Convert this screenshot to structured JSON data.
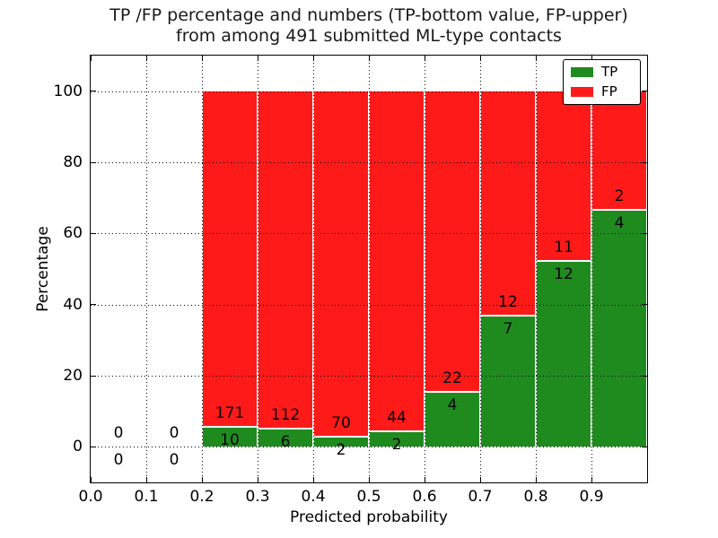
{
  "title": {
    "line1": "TP /FP percentage and numbers (TP-bottom value, FP-upper)",
    "line2": "from among 491 submitted ML-type contacts"
  },
  "axes": {
    "xlabel": "Predicted probability",
    "ylabel": "Percentage",
    "xtick_labels": [
      "0.0",
      "0.1",
      "0.2",
      "0.3",
      "0.4",
      "0.5",
      "0.6",
      "0.7",
      "0.8",
      "0.9"
    ],
    "xtick_values": [
      0.0,
      0.1,
      0.2,
      0.3,
      0.4,
      0.5,
      0.6,
      0.7,
      0.8,
      0.9
    ],
    "ytick_labels": [
      "0",
      "20",
      "40",
      "60",
      "80",
      "100"
    ],
    "ytick_values": [
      0,
      20,
      40,
      60,
      80,
      100
    ]
  },
  "legend": {
    "items": [
      {
        "label": "TP",
        "color_key": "tp"
      },
      {
        "label": "FP",
        "color_key": "fp"
      }
    ],
    "position": "upper right"
  },
  "colors": {
    "tp": "#1f8b1f",
    "fp": "#ff1a1a",
    "grid": "#000000",
    "background": "#ffffff"
  },
  "chart_data": {
    "type": "bar",
    "stacked": true,
    "normalized_to_percent": true,
    "title": "TP /FP percentage and numbers (TP-bottom value, FP-upper) from among 491 submitted ML-type contacts",
    "xlabel": "Predicted probability",
    "ylabel": "Percentage",
    "xlim": [
      0.0,
      1.0
    ],
    "ylim": [
      -10,
      110
    ],
    "grid": true,
    "grid_style": "dotted",
    "legend_position": "upper right",
    "total_contacts": 491,
    "bin_edges": [
      0.0,
      0.1,
      0.2,
      0.3,
      0.4,
      0.5,
      0.6,
      0.7,
      0.8,
      0.9,
      1.0
    ],
    "series": [
      {
        "name": "TP",
        "values": [
          0,
          0,
          10,
          6,
          2,
          2,
          4,
          7,
          12,
          4
        ]
      },
      {
        "name": "FP",
        "values": [
          0,
          0,
          171,
          112,
          70,
          44,
          22,
          12,
          11,
          2
        ]
      }
    ],
    "tp_percent_of_bin": [
      0,
      0,
      5.52,
      5.08,
      2.78,
      4.35,
      15.38,
      36.84,
      52.17,
      66.67
    ],
    "annotation_rule": "FP count printed just above TP/FP boundary, TP count just below"
  }
}
